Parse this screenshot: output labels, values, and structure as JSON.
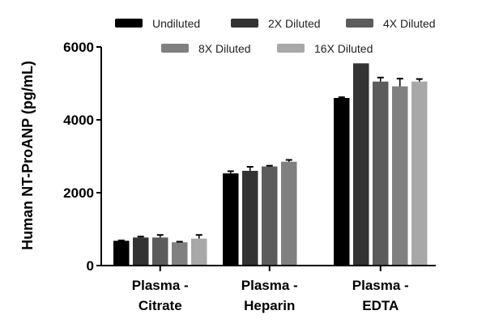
{
  "chart_data": {
    "type": "bar",
    "title": "",
    "xlabel": "",
    "ylabel": "Human NT-ProANP (pg/mL)",
    "ylim": [
      0,
      6000
    ],
    "yticks": [
      0,
      2000,
      4000,
      6000
    ],
    "categories": [
      [
        "Plasma -",
        "Citrate"
      ],
      [
        "Plasma -",
        "Heparin"
      ],
      [
        "Plasma -",
        "EDTA"
      ]
    ],
    "legend_position": "top",
    "series": [
      {
        "name": "Undiluted",
        "color": "#000000",
        "values": [
          680,
          2530,
          4600
        ],
        "errors": [
          10,
          60,
          20
        ]
      },
      {
        "name": "2X Diluted",
        "color": "#333333",
        "values": [
          770,
          2600,
          5550
        ],
        "errors": [
          25,
          110,
          0
        ]
      },
      {
        "name": "4X Diluted",
        "color": "#5c5c5c",
        "values": [
          770,
          2720,
          5050
        ],
        "errors": [
          70,
          20,
          110
        ]
      },
      {
        "name": "8X Diluted",
        "color": "#808080",
        "values": [
          640,
          2850,
          4920
        ],
        "errors": [
          15,
          50,
          210
        ]
      },
      {
        "name": "16X Diluted",
        "color": "#a8a8a8",
        "values": [
          740,
          0,
          5050
        ],
        "errors": [
          100,
          0,
          70
        ]
      }
    ]
  }
}
